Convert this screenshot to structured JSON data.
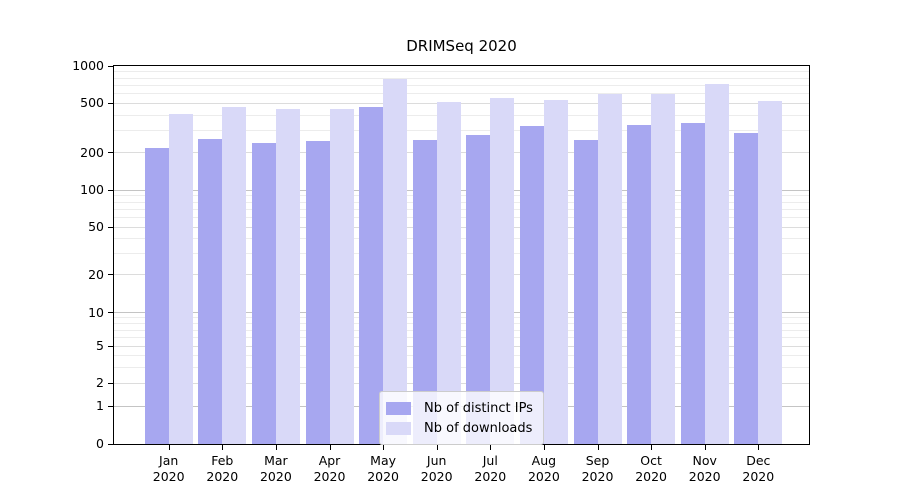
{
  "title": "DRIMSeq 2020",
  "chart_data": {
    "type": "bar",
    "title": "DRIMSeq 2020",
    "categories": [
      "Jan",
      "Feb",
      "Mar",
      "Apr",
      "May",
      "Jun",
      "Jul",
      "Aug",
      "Sep",
      "Oct",
      "Nov",
      "Dec"
    ],
    "category_year": "2020",
    "series": [
      {
        "name": "Nb of distinct IPs",
        "color": "#a7a7f0",
        "values": [
          218,
          256,
          238,
          250,
          464,
          255,
          279,
          329,
          251,
          333,
          348,
          290
        ]
      },
      {
        "name": "Nb of downloads",
        "color": "#d9d9f8",
        "values": [
          411,
          464,
          447,
          447,
          785,
          515,
          550,
          535,
          600,
          595,
          712,
          521
        ]
      }
    ],
    "xlabel": "",
    "ylabel": "",
    "yscale": "asinh",
    "ylim": [
      0,
      1000
    ],
    "yticks": [
      0,
      1,
      2,
      5,
      10,
      20,
      50,
      100,
      200,
      500,
      1000
    ],
    "yticks_minor": [
      3,
      4,
      6,
      7,
      8,
      9,
      30,
      40,
      60,
      70,
      80,
      90,
      300,
      400,
      600,
      700,
      800,
      900
    ],
    "grid": "both",
    "legend_position": "lower center",
    "colors": {
      "grid_power10": "#c4c4c4",
      "grid_labeled": "#dcdcdc",
      "grid_minor": "#ececec",
      "axis": "#000000",
      "background": "#ffffff"
    }
  }
}
